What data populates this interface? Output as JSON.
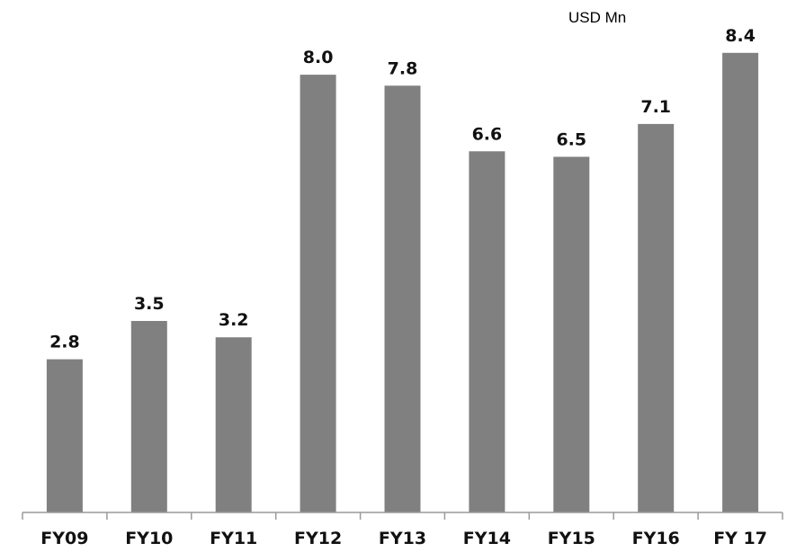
{
  "chart_data": {
    "type": "bar",
    "unit_label": "USD Mn",
    "categories": [
      "FY09",
      "FY10",
      "FY11",
      "FY12",
      "FY13",
      "FY14",
      "FY15",
      "FY16",
      "FY 17"
    ],
    "values": [
      2.8,
      3.5,
      3.2,
      8.0,
      7.8,
      6.6,
      6.5,
      7.1,
      8.4
    ],
    "data_labels": [
      "2.8",
      "3.5",
      "3.2",
      "8.0",
      "7.8",
      "6.6",
      "6.5",
      "7.1",
      "8.4"
    ],
    "ylim": [
      0,
      9.3
    ],
    "grid": false,
    "legend": "none",
    "bar_color": "#808080",
    "axis_color": "#9a9a9a"
  }
}
